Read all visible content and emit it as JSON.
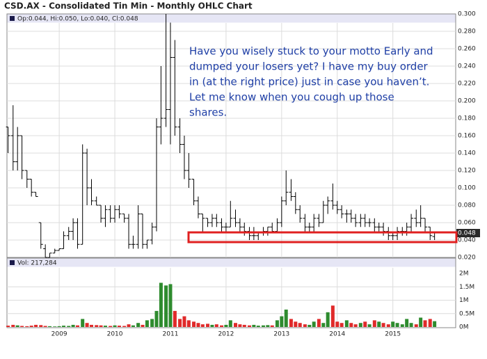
{
  "chart_data": [
    {
      "type": "ohlc",
      "title": "CSD.AX - Consolidated Tin Min - Monthly OHLC Chart",
      "legend_text": "Op:0.044, Hi:0.050, Lo:0.040, Cl:0.048",
      "annotation": [
        "Have you wisely stuck to your motto Early and",
        "dumped your losers yet? I have my buy order",
        "in (at the right price) just in case you haven’t.",
        "Let me know when you cough up those",
        "shares."
      ],
      "last_price": {
        "value": 0.048,
        "label": "0.048"
      },
      "color": "#000000",
      "grid": true,
      "xlim": [
        2008.06,
        2016.13
      ],
      "xticks": [
        2009,
        2010,
        2011,
        2012,
        2013,
        2014,
        2015
      ],
      "ylim": [
        0.02,
        0.3
      ],
      "yticks": [
        {
          "value": 0.02,
          "label": "0.020"
        },
        {
          "value": 0.04,
          "label": "0.040"
        },
        {
          "value": 0.06,
          "label": "0.060"
        },
        {
          "value": 0.08,
          "label": "0.080"
        },
        {
          "value": 0.1,
          "label": "0.100"
        },
        {
          "value": 0.12,
          "label": "0.120"
        },
        {
          "value": 0.14,
          "label": "0.140"
        },
        {
          "value": 0.16,
          "label": "0.160"
        },
        {
          "value": 0.18,
          "label": "0.180"
        },
        {
          "value": 0.2,
          "label": "0.200"
        },
        {
          "value": 0.22,
          "label": "0.220"
        },
        {
          "value": 0.24,
          "label": "0.240"
        },
        {
          "value": 0.26,
          "label": "0.260"
        },
        {
          "value": 0.28,
          "label": "0.280"
        },
        {
          "value": 0.3,
          "label": "0.300"
        }
      ],
      "x": [
        2008.08,
        2008.17,
        2008.25,
        2008.33,
        2008.42,
        2008.5,
        2008.58,
        2008.67,
        2008.75,
        2008.83,
        2008.92,
        2009.0,
        2009.08,
        2009.17,
        2009.25,
        2009.33,
        2009.42,
        2009.5,
        2009.58,
        2009.67,
        2009.75,
        2009.83,
        2009.92,
        2010.0,
        2010.08,
        2010.17,
        2010.25,
        2010.33,
        2010.42,
        2010.5,
        2010.58,
        2010.67,
        2010.75,
        2010.83,
        2010.92,
        2011.0,
        2011.08,
        2011.17,
        2011.25,
        2011.33,
        2011.42,
        2011.5,
        2011.58,
        2011.67,
        2011.75,
        2011.83,
        2011.92,
        2012.0,
        2012.08,
        2012.17,
        2012.25,
        2012.33,
        2012.42,
        2012.5,
        2012.58,
        2012.67,
        2012.75,
        2012.83,
        2012.92,
        2013.0,
        2013.08,
        2013.17,
        2013.25,
        2013.33,
        2013.42,
        2013.5,
        2013.58,
        2013.67,
        2013.75,
        2013.83,
        2013.92,
        2014.0,
        2014.08,
        2014.17,
        2014.25,
        2014.33,
        2014.42,
        2014.5,
        2014.58,
        2014.67,
        2014.75,
        2014.83,
        2014.92,
        2015.0,
        2015.08,
        2015.17,
        2015.25,
        2015.33,
        2015.42,
        2015.5,
        2015.58,
        2015.67,
        2015.75
      ],
      "open": [
        0.17,
        0.16,
        0.13,
        0.16,
        0.12,
        0.11,
        0.095,
        0.06,
        0.03,
        0.02,
        0.025,
        0.028,
        0.03,
        0.045,
        0.05,
        0.06,
        0.035,
        0.14,
        0.1,
        0.085,
        0.08,
        0.065,
        0.075,
        0.065,
        0.075,
        0.07,
        0.065,
        0.035,
        0.035,
        0.07,
        0.035,
        0.04,
        0.055,
        0.17,
        0.18,
        0.19,
        0.25,
        0.17,
        0.15,
        0.12,
        0.11,
        0.085,
        0.07,
        0.065,
        0.06,
        0.065,
        0.06,
        0.055,
        0.055,
        0.065,
        0.06,
        0.055,
        0.05,
        0.045,
        0.045,
        0.048,
        0.05,
        0.055,
        0.05,
        0.06,
        0.085,
        0.095,
        0.09,
        0.075,
        0.065,
        0.055,
        0.055,
        0.065,
        0.06,
        0.08,
        0.085,
        0.08,
        0.075,
        0.07,
        0.07,
        0.065,
        0.06,
        0.065,
        0.06,
        0.06,
        0.055,
        0.055,
        0.05,
        0.045,
        0.045,
        0.05,
        0.05,
        0.055,
        0.065,
        0.06,
        0.065,
        0.055,
        0.044
      ],
      "high": [
        0.17,
        0.195,
        0.17,
        0.16,
        0.12,
        0.11,
        0.095,
        0.06,
        0.035,
        0.025,
        0.03,
        0.03,
        0.05,
        0.055,
        0.065,
        0.065,
        0.15,
        0.145,
        0.11,
        0.09,
        0.08,
        0.08,
        0.08,
        0.08,
        0.08,
        0.07,
        0.07,
        0.045,
        0.08,
        0.07,
        0.04,
        0.06,
        0.18,
        0.24,
        0.3,
        0.29,
        0.27,
        0.18,
        0.16,
        0.14,
        0.11,
        0.09,
        0.07,
        0.065,
        0.07,
        0.07,
        0.065,
        0.06,
        0.085,
        0.075,
        0.065,
        0.06,
        0.055,
        0.055,
        0.05,
        0.055,
        0.055,
        0.06,
        0.065,
        0.09,
        0.12,
        0.11,
        0.095,
        0.08,
        0.07,
        0.06,
        0.07,
        0.07,
        0.085,
        0.09,
        0.105,
        0.085,
        0.08,
        0.075,
        0.075,
        0.07,
        0.07,
        0.07,
        0.065,
        0.065,
        0.06,
        0.06,
        0.055,
        0.05,
        0.055,
        0.055,
        0.06,
        0.07,
        0.075,
        0.08,
        0.065,
        0.055,
        0.05
      ],
      "low": [
        0.14,
        0.12,
        0.12,
        0.11,
        0.1,
        0.09,
        0.09,
        0.03,
        0.02,
        0.02,
        0.025,
        0.028,
        0.03,
        0.04,
        0.04,
        0.03,
        0.035,
        0.08,
        0.08,
        0.08,
        0.06,
        0.055,
        0.06,
        0.06,
        0.065,
        0.06,
        0.03,
        0.03,
        0.03,
        0.03,
        0.03,
        0.035,
        0.05,
        0.15,
        0.17,
        0.15,
        0.16,
        0.14,
        0.11,
        0.1,
        0.08,
        0.065,
        0.05,
        0.055,
        0.055,
        0.055,
        0.05,
        0.05,
        0.055,
        0.055,
        0.05,
        0.045,
        0.04,
        0.04,
        0.04,
        0.045,
        0.045,
        0.05,
        0.05,
        0.055,
        0.08,
        0.085,
        0.07,
        0.06,
        0.05,
        0.05,
        0.05,
        0.055,
        0.06,
        0.07,
        0.075,
        0.07,
        0.065,
        0.06,
        0.06,
        0.055,
        0.055,
        0.055,
        0.055,
        0.05,
        0.05,
        0.045,
        0.04,
        0.04,
        0.04,
        0.045,
        0.045,
        0.05,
        0.055,
        0.055,
        0.05,
        0.04,
        0.04
      ],
      "close": [
        0.16,
        0.13,
        0.16,
        0.12,
        0.11,
        0.095,
        0.09,
        0.035,
        0.02,
        0.025,
        0.028,
        0.03,
        0.045,
        0.05,
        0.06,
        0.035,
        0.14,
        0.1,
        0.085,
        0.08,
        0.065,
        0.075,
        0.065,
        0.075,
        0.07,
        0.065,
        0.035,
        0.035,
        0.07,
        0.035,
        0.04,
        0.055,
        0.17,
        0.18,
        0.19,
        0.25,
        0.17,
        0.15,
        0.12,
        0.11,
        0.085,
        0.07,
        0.065,
        0.06,
        0.065,
        0.06,
        0.055,
        0.055,
        0.065,
        0.06,
        0.055,
        0.05,
        0.045,
        0.045,
        0.048,
        0.05,
        0.055,
        0.05,
        0.06,
        0.085,
        0.095,
        0.09,
        0.075,
        0.065,
        0.055,
        0.055,
        0.065,
        0.06,
        0.08,
        0.085,
        0.08,
        0.075,
        0.07,
        0.07,
        0.065,
        0.06,
        0.065,
        0.06,
        0.06,
        0.055,
        0.055,
        0.05,
        0.045,
        0.045,
        0.05,
        0.05,
        0.055,
        0.065,
        0.06,
        0.065,
        0.055,
        0.045,
        0.048
      ]
    },
    {
      "type": "bar",
      "legend_text": "Vol: 217,284",
      "up_color": "#2e8b2e",
      "down_color": "#e02a2a",
      "grid": true,
      "xticks": [
        2009,
        2010,
        2011,
        2012,
        2013,
        2014,
        2015
      ],
      "ylim": [
        0,
        2000000
      ],
      "yticks": [
        {
          "value": 0,
          "label": "0M"
        },
        {
          "value": 500000,
          "label": "0.5M"
        },
        {
          "value": 1000000,
          "label": "1M"
        },
        {
          "value": 1500000,
          "label": "1.5M"
        },
        {
          "value": 2000000,
          "label": "2M"
        }
      ],
      "values": [
        50000,
        80000,
        60000,
        40000,
        30000,
        50000,
        80000,
        70000,
        40000,
        30000,
        20000,
        30000,
        50000,
        40000,
        80000,
        60000,
        300000,
        150000,
        80000,
        70000,
        60000,
        50000,
        40000,
        60000,
        50000,
        40000,
        100000,
        60000,
        150000,
        80000,
        250000,
        300000,
        600000,
        1650000,
        1550000,
        1600000,
        600000,
        300000,
        400000,
        250000,
        200000,
        150000,
        100000,
        120000,
        80000,
        100000,
        60000,
        80000,
        250000,
        150000,
        100000,
        80000,
        60000,
        80000,
        50000,
        60000,
        70000,
        60000,
        250000,
        400000,
        650000,
        300000,
        200000,
        150000,
        100000,
        80000,
        200000,
        300000,
        150000,
        550000,
        800000,
        200000,
        150000,
        250000,
        150000,
        100000,
        150000,
        200000,
        100000,
        250000,
        200000,
        150000,
        100000,
        200000,
        150000,
        100000,
        300000,
        150000,
        100000,
        350000,
        250000,
        300000,
        217284
      ]
    }
  ]
}
